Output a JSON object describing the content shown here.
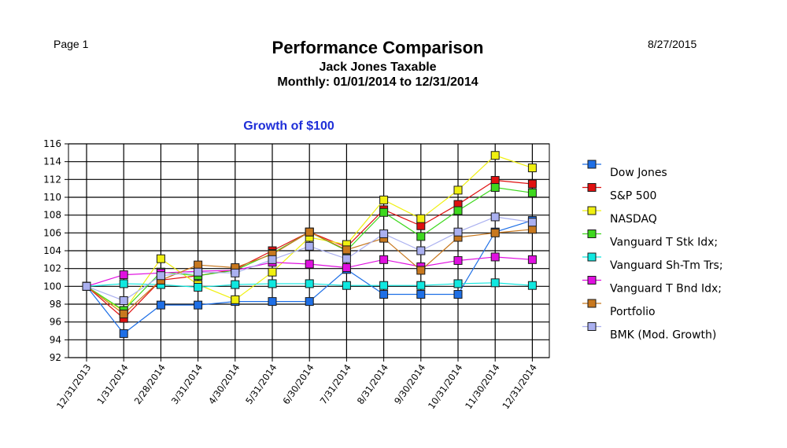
{
  "page": {
    "page_label": "Page 1",
    "date": "8/27/2015",
    "title": "Performance Comparison",
    "subtitle": "Jack Jones Taxable",
    "period": "Monthly: 01/01/2014 to 12/31/2014"
  },
  "chart_data": {
    "type": "line",
    "title": "Growth of $100",
    "title_color": "#1f2fd8",
    "xlabel": "",
    "ylabel": "",
    "ylim": [
      92,
      116
    ],
    "yticks": [
      92,
      94,
      96,
      98,
      100,
      102,
      104,
      106,
      108,
      110,
      112,
      114,
      116
    ],
    "grid": true,
    "legend_position": "right",
    "categories": [
      "12/31/2013",
      "1/31/2014",
      "2/28/2014",
      "3/31/2014",
      "4/30/2014",
      "5/31/2014",
      "6/30/2014",
      "7/31/2014",
      "8/31/2014",
      "9/30/2014",
      "10/31/2014",
      "11/30/2014",
      "12/31/2014"
    ],
    "series": [
      {
        "name": "Dow Jones",
        "color": "#1e6fe6",
        "values": [
          100,
          94.7,
          97.9,
          97.9,
          98.3,
          98.3,
          98.3,
          101.9,
          99.1,
          99.1,
          99.1,
          106.1,
          107.4
        ]
      },
      {
        "name": "S&P 500",
        "color": "#e01010",
        "values": [
          100,
          96.4,
          100.7,
          101.2,
          101.9,
          104.0,
          106.1,
          104.4,
          108.6,
          106.8,
          109.2,
          111.9,
          111.5
        ]
      },
      {
        "name": "NASDAQ",
        "color": "#f0f010",
        "values": [
          100,
          97.2,
          103.1,
          100.2,
          98.5,
          101.6,
          105.5,
          104.7,
          109.7,
          107.6,
          110.8,
          114.7,
          113.3
        ]
      },
      {
        "name": "Vanguard T Stk Idx;",
        "color": "#3ed81e",
        "values": [
          100,
          97.3,
          101.6,
          101.2,
          101.8,
          103.7,
          106.1,
          104.0,
          108.3,
          105.6,
          108.5,
          111.1,
          110.5
        ]
      },
      {
        "name": "Vanguard Sh-Tm Trs;",
        "color": "#10e8e0",
        "values": [
          100,
          100.3,
          100.2,
          99.9,
          100.2,
          100.3,
          100.3,
          100.1,
          100.1,
          100.1,
          100.3,
          100.4,
          100.1
        ]
      },
      {
        "name": "Vanguard T Bnd Idx;",
        "color": "#e010e0",
        "values": [
          100,
          101.3,
          101.5,
          101.7,
          101.8,
          102.7,
          102.5,
          102.1,
          103.0,
          102.2,
          102.9,
          103.3,
          103.0
        ]
      },
      {
        "name": "Portfolio",
        "color": "#c8781e",
        "values": [
          100,
          96.9,
          100.7,
          102.4,
          102.1,
          103.6,
          106.1,
          104.1,
          105.4,
          101.8,
          105.5,
          106.0,
          106.4
        ]
      },
      {
        "name": "BMK (Mod. Growth)",
        "color": "#aab0f0",
        "values": [
          100,
          98.4,
          101.2,
          101.6,
          101.5,
          103.0,
          104.5,
          103.1,
          105.9,
          104.0,
          106.1,
          107.8,
          107.2
        ]
      }
    ]
  }
}
